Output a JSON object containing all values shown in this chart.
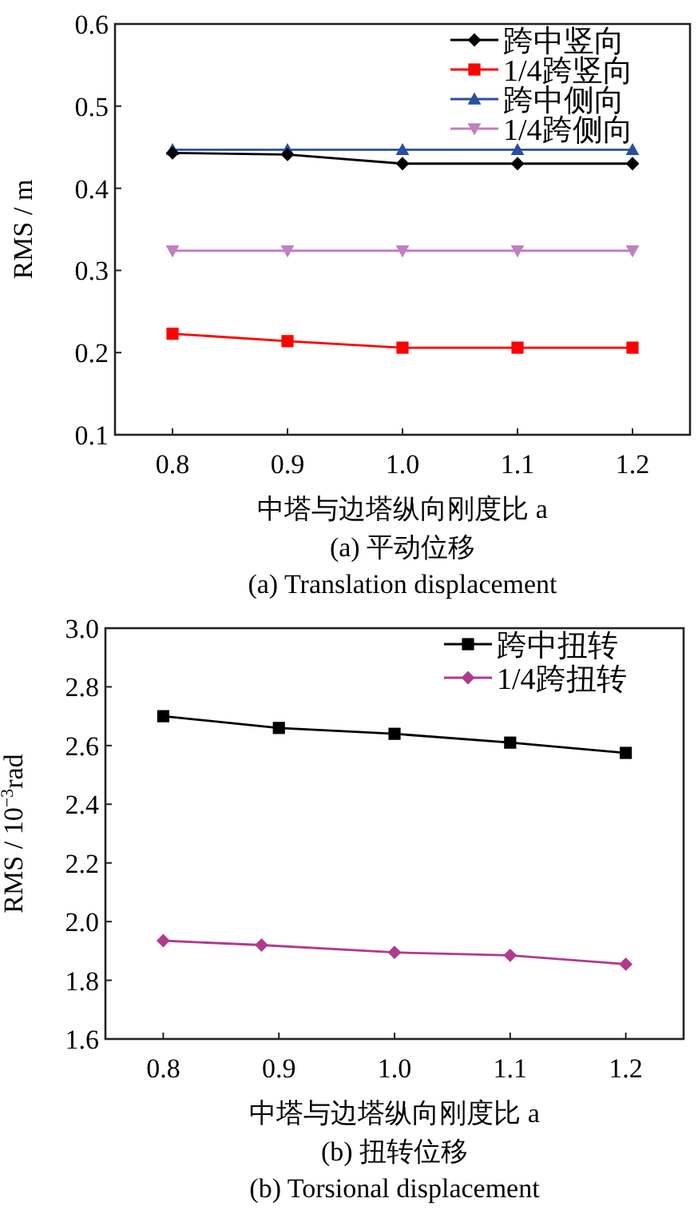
{
  "chart_data": [
    {
      "type": "line",
      "xlabel": "中塔与边塔纵向刚度比 a",
      "ylabel": "RMS / m",
      "annotations": [
        "(a) 平动位移",
        "(a) Translation displacement"
      ],
      "x": [
        0.8,
        0.9,
        1.0,
        1.1,
        1.2
      ],
      "xlim": [
        0.75,
        1.25
      ],
      "xticks": [
        0.8,
        0.9,
        {
          "value": 1.0,
          "label": "1.0"
        },
        1.1,
        1.2
      ],
      "ylim": [
        0.1,
        0.6
      ],
      "yticks": [
        0.1,
        0.2,
        0.3,
        0.4,
        0.5,
        0.6
      ],
      "legend": "top right",
      "grid": false,
      "series": [
        {
          "name": "跨中竖向",
          "color": "#000000",
          "marker": "diamond",
          "values": [
            0.443,
            0.441,
            0.43,
            0.43,
            0.43
          ]
        },
        {
          "name": "1/4跨竖向",
          "color": "#ff0000",
          "marker": "square",
          "values": [
            0.223,
            0.214,
            0.206,
            0.206,
            0.206
          ]
        },
        {
          "name": "跨中侧向",
          "color": "#2a4fa0",
          "marker": "triangle",
          "values": [
            0.447,
            0.447,
            0.447,
            0.447,
            0.447
          ]
        },
        {
          "name": "1/4跨侧向",
          "color": "#c080c0",
          "marker": "triangle-down",
          "values": [
            0.324,
            0.324,
            0.324,
            0.324,
            0.324
          ]
        }
      ]
    },
    {
      "type": "line",
      "xlabel": "中塔与边塔纵向刚度比 a",
      "ylabel": "RMS / 10$^{−3}$rad",
      "annotations": [
        "(b) 扭转位移",
        "(b) Torsional displacement"
      ],
      "x": [
        0.8,
        0.9,
        1.0,
        1.1,
        1.2
      ],
      "xlim": [
        0.75,
        1.25
      ],
      "xticks": [
        0.8,
        0.9,
        {
          "value": 1.0,
          "label": "1.0"
        },
        1.1,
        1.2
      ],
      "ylim": [
        1.6,
        3.0
      ],
      "yticks": [
        1.6,
        1.8,
        {
          "value": 2.0,
          "label": "2.0"
        },
        2.2,
        2.4,
        2.6,
        2.8,
        {
          "value": 3.0,
          "label": "3.0"
        }
      ],
      "legend": "top right",
      "grid": false,
      "series": [
        {
          "name": "跨中扭转",
          "color": "#000000",
          "marker": "square",
          "values": [
            2.7,
            2.66,
            2.64,
            2.61,
            2.575
          ]
        },
        {
          "name": "1/4跨扭转",
          "color": "#b03a8e",
          "marker": "diamond",
          "x": [
            0.8,
            0.885,
            1.0,
            1.1,
            1.2
          ],
          "values": [
            1.935,
            1.92,
            1.895,
            1.885,
            1.855
          ]
        }
      ]
    }
  ]
}
